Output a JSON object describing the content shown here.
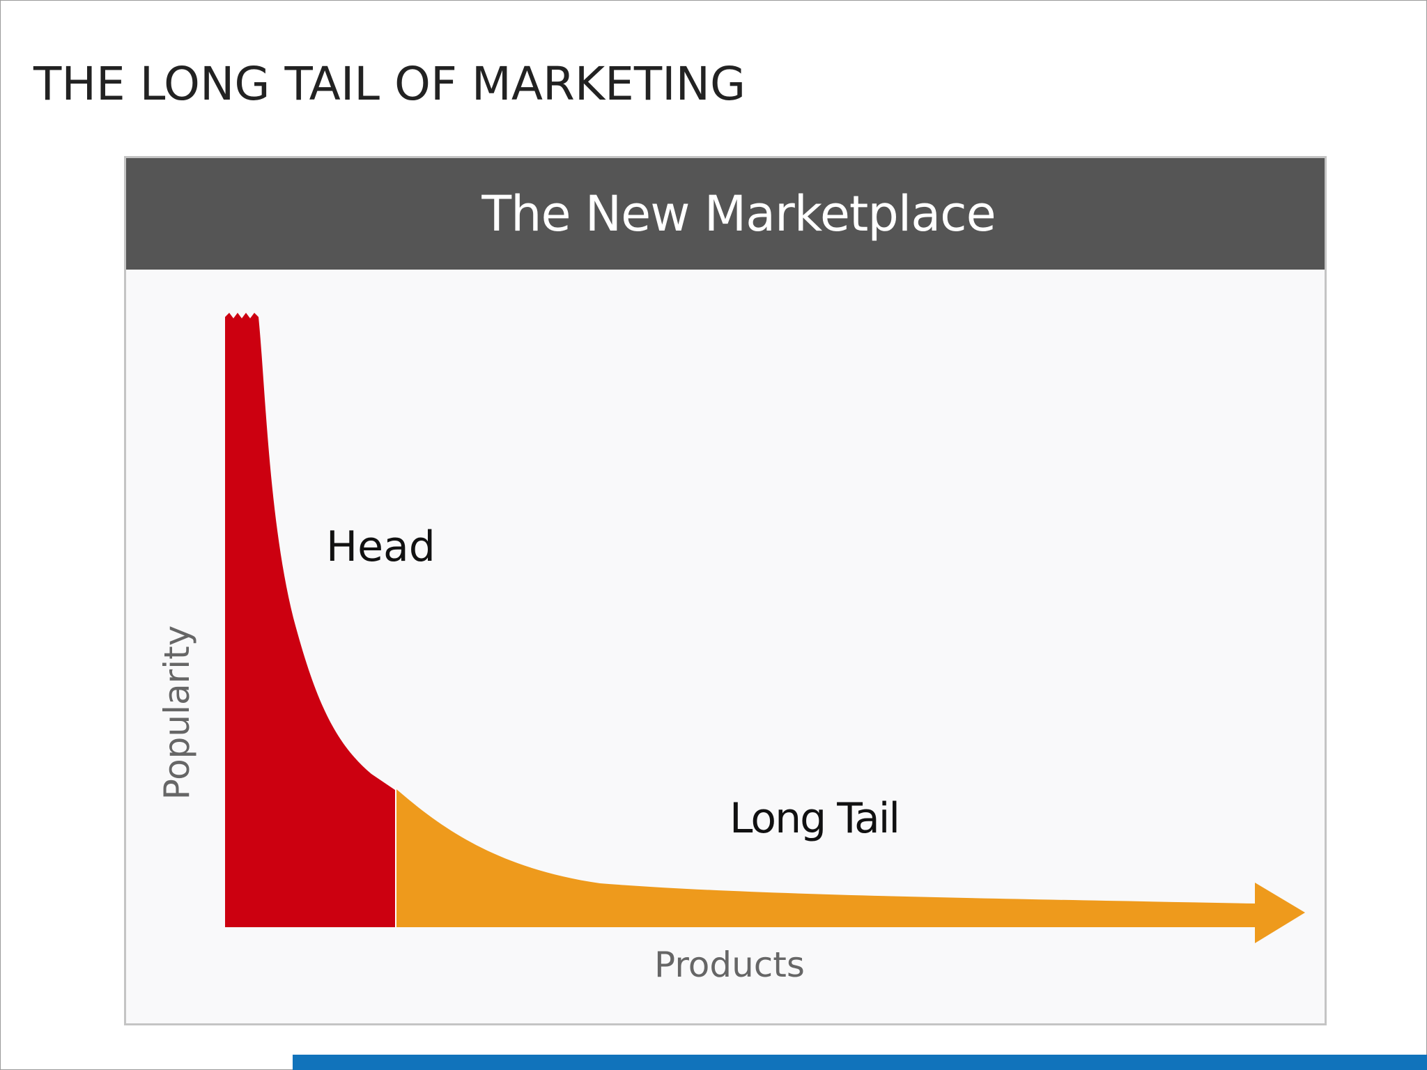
{
  "slide": {
    "title": "THE LONG TAIL OF MARKETING"
  },
  "figure": {
    "header_title": "The New Marketplace",
    "y_axis_label": "Popularity",
    "x_axis_label": "Products",
    "head_label": "Head",
    "tail_label": "Long Tail"
  },
  "colors": {
    "header_bg": "#555555",
    "head_fill": "#cc0010",
    "tail_fill": "#ee9a1c",
    "accent_bar": "#1173bb",
    "axis_text": "#666666",
    "label_text": "#111111"
  }
}
